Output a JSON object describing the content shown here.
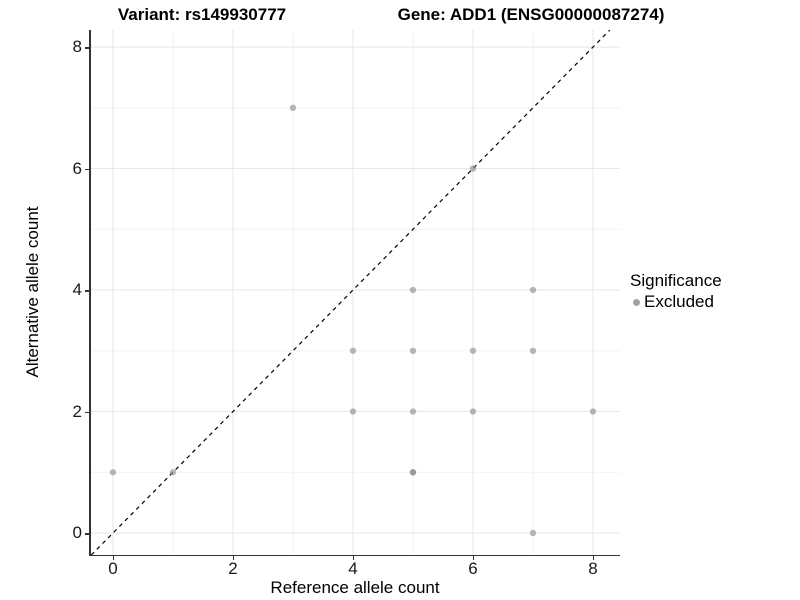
{
  "chart_data": {
    "type": "scatter",
    "title_left": "Variant: rs149930777",
    "title_right": "Gene: ADD1 (ENSG00000087274)",
    "xlabel": "Reference allele count",
    "ylabel": "Alternative allele count",
    "xlim": [
      -0.383,
      8.45
    ],
    "ylim": [
      -0.362,
      8.281
    ],
    "xticks": [
      0,
      2,
      4,
      6,
      8
    ],
    "yticks": [
      0,
      2,
      4,
      6,
      8
    ],
    "xticks_minor": [
      1,
      3,
      5,
      7
    ],
    "yticks_minor": [
      1,
      3,
      5,
      7
    ],
    "grid": {
      "major_color": "#e7e7e7",
      "minor_color": "#f3f3f3"
    },
    "identity_line": {
      "type": "dashed",
      "color": "#000000",
      "slope": 1,
      "intercept": 0
    },
    "legend": {
      "position": "right",
      "title": "Significance",
      "items": [
        {
          "label": "Excluded",
          "color": "#a2a2a2"
        }
      ]
    },
    "series": [
      {
        "name": "Excluded",
        "color": "#8a8a8a",
        "opacity": 0.62,
        "marker_radius": 3.2,
        "points": [
          {
            "x": 0,
            "y": 1
          },
          {
            "x": 1,
            "y": 1
          },
          {
            "x": 3,
            "y": 7
          },
          {
            "x": 4,
            "y": 2
          },
          {
            "x": 4,
            "y": 3
          },
          {
            "x": 5,
            "y": 1
          },
          {
            "x": 5,
            "y": 1
          },
          {
            "x": 5,
            "y": 2
          },
          {
            "x": 5,
            "y": 3
          },
          {
            "x": 5,
            "y": 4
          },
          {
            "x": 6,
            "y": 2
          },
          {
            "x": 6,
            "y": 3
          },
          {
            "x": 6,
            "y": 6
          },
          {
            "x": 7,
            "y": 0
          },
          {
            "x": 7,
            "y": 3
          },
          {
            "x": 7,
            "y": 4
          },
          {
            "x": 8,
            "y": 2
          }
        ]
      }
    ]
  }
}
